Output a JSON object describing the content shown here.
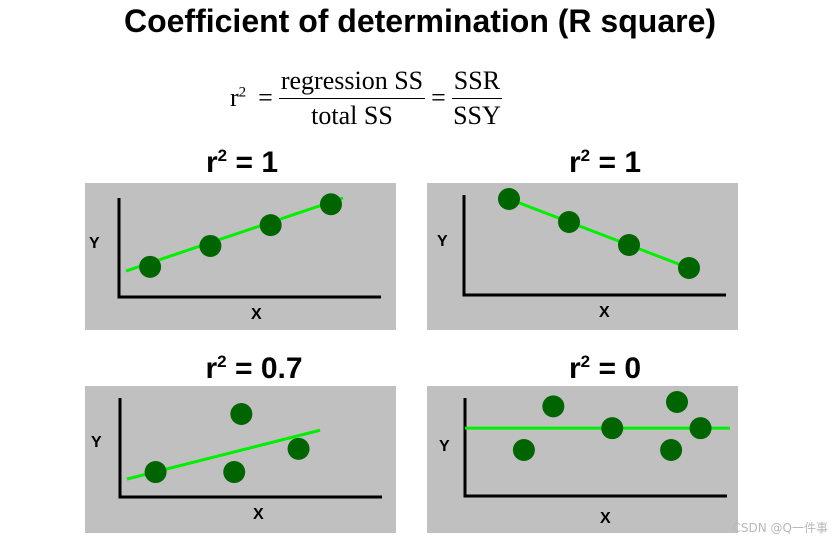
{
  "title": "Coefficient of determination (R square)",
  "formula": {
    "lhs_base": "r",
    "lhs_exp": "2",
    "eq": "=",
    "numerator1": "regression SS",
    "denominator1": "total SS",
    "numerator2": "SSR",
    "denominator2": "SSY"
  },
  "panels": [
    {
      "base": "r",
      "exp": "2",
      "value_text": " = 1",
      "xlabel": "X",
      "ylabel": "Y"
    },
    {
      "base": "r",
      "exp": "2",
      "value_text": " = 1",
      "xlabel": "X",
      "ylabel": "Y"
    },
    {
      "base": "r",
      "exp": "2",
      "value_text": " = 0.7",
      "xlabel": "X",
      "ylabel": "Y"
    },
    {
      "base": "r",
      "exp": "2",
      "value_text": " = 0",
      "xlabel": "X",
      "ylabel": "Y"
    }
  ],
  "chart_data": [
    {
      "type": "scatter",
      "r_squared": 1,
      "points": [
        [
          1,
          1
        ],
        [
          2,
          2
        ],
        [
          3,
          3
        ],
        [
          4,
          4
        ]
      ],
      "fit_line": [
        [
          0.6,
          0.8
        ],
        [
          4.2,
          4.3
        ]
      ]
    },
    {
      "type": "scatter",
      "r_squared": 1,
      "points": [
        [
          1,
          4
        ],
        [
          2,
          3
        ],
        [
          3,
          2
        ],
        [
          4,
          1
        ]
      ],
      "fit_line": [
        [
          1,
          4
        ],
        [
          4,
          1
        ]
      ]
    },
    {
      "type": "scatter",
      "r_squared": 0.7,
      "points": [
        [
          1,
          1
        ],
        [
          2.2,
          3.5
        ],
        [
          2.1,
          1
        ],
        [
          3,
          2
        ]
      ],
      "fit_line": [
        [
          0.6,
          0.7
        ],
        [
          3.3,
          2.8
        ]
      ]
    },
    {
      "type": "scatter",
      "r_squared": 0,
      "points": [
        [
          1,
          1
        ],
        [
          1.5,
          3
        ],
        [
          2.5,
          2
        ],
        [
          3.5,
          1
        ],
        [
          3.6,
          3.2
        ],
        [
          4,
          2
        ]
      ],
      "fit_line": [
        [
          0,
          2
        ],
        [
          4.5,
          2
        ]
      ]
    }
  ],
  "colors": {
    "point": "#006400",
    "line": "#00ee00",
    "panel_bg": "#c0c0c0"
  },
  "watermark": "CSDN @Q一件事"
}
